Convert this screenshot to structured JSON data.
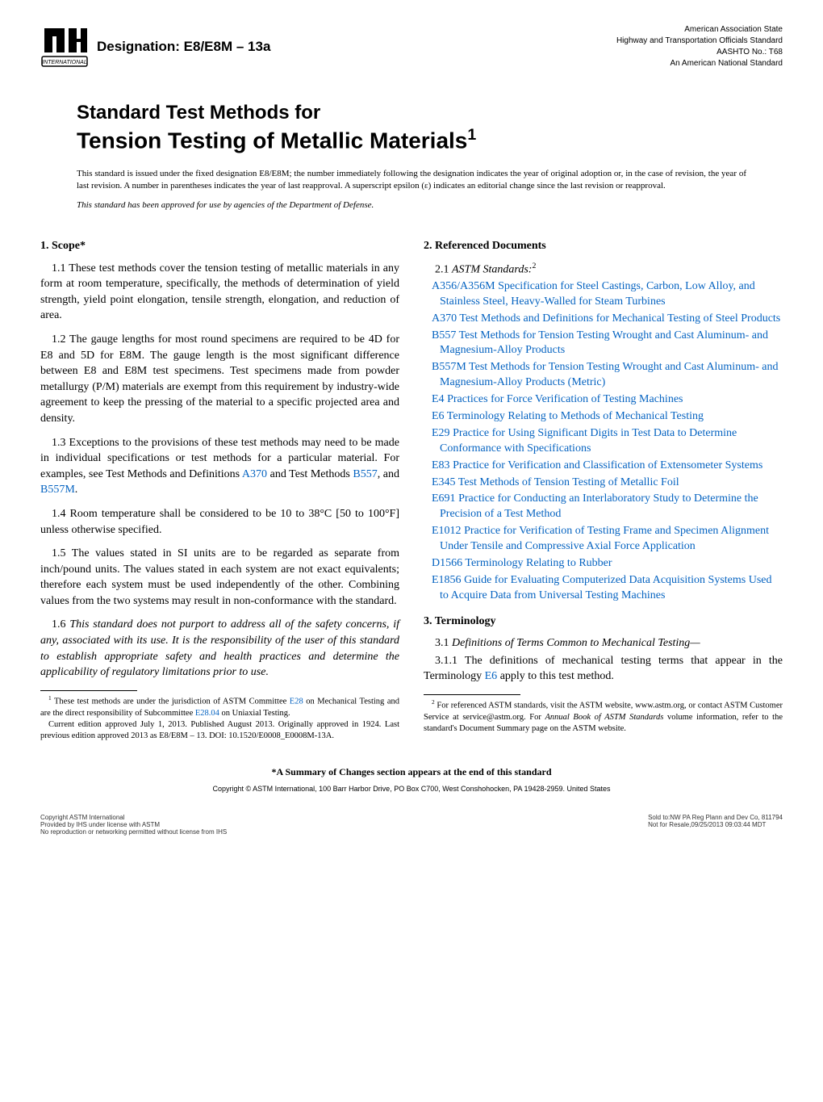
{
  "header": {
    "designation_label": "Designation: E8/E8M – 13a",
    "right_lines": [
      "American Association State",
      "Highway and Transportation Officials Standard",
      "AASHTO No.: T68",
      "An American National Standard"
    ]
  },
  "title": {
    "lead": "Standard Test Methods for",
    "main": "Tension Testing of Metallic Materials",
    "super": "1"
  },
  "preamble": {
    "text": "This standard is issued under the fixed designation E8/E8M; the number immediately following the designation indicates the year of original adoption or, in the case of revision, the year of last revision. A number in parentheses indicates the year of last reapproval. A superscript epsilon (ε) indicates an editorial change since the last revision or reapproval.",
    "italic": "This standard has been approved for use by agencies of the Department of Defense."
  },
  "sections": {
    "scope_head": "1.  Scope*",
    "scope_1_1": "1.1 These test methods cover the tension testing of metallic materials in any form at room temperature, specifically, the methods of determination of yield strength, yield point elongation, tensile strength, elongation, and reduction of area.",
    "scope_1_2": "1.2 The gauge lengths for most round specimens are required to be 4D for E8 and 5D for E8M. The gauge length is the most significant difference between E8 and E8M test specimens. Test specimens made from powder metallurgy (P/M) materials are exempt from this requirement by industry-wide agreement to keep the pressing of the material to a specific projected area and density.",
    "scope_1_3_a": "1.3 Exceptions to the provisions of these test methods may need to be made in individual specifications or test methods for a particular material. For examples, see Test Methods and Definitions ",
    "scope_1_3_l1": "A370",
    "scope_1_3_b": " and Test Methods ",
    "scope_1_3_l2": "B557",
    "scope_1_3_c": ", and ",
    "scope_1_3_l3": "B557M",
    "scope_1_3_d": ".",
    "scope_1_4": "1.4 Room temperature shall be considered to be 10 to 38°C [50 to 100°F] unless otherwise specified.",
    "scope_1_5": "1.5 The values stated in SI units are to be regarded as separate from inch/pound units. The values stated in each system are not exact equivalents; therefore each system must be used independently of the other. Combining values from the two systems may result in non-conformance with the standard.",
    "scope_1_6": "1.6 This standard does not purport to address all of the safety concerns, if any, associated with its use. It is the responsibility of the user of this standard to establish appropriate safety and health practices and determine the applicability of regulatory limitations prior to use.",
    "refdocs_head": "2.  Referenced Documents",
    "refdocs_2_1_a": "2.1 ",
    "refdocs_2_1_b": "ASTM Standards:",
    "refdocs_2_1_sup": "2",
    "refs": [
      {
        "code": "A356/A356M",
        "text": " Specification for Steel Castings, Carbon, Low Alloy, and Stainless Steel, Heavy-Walled for Steam Turbines"
      },
      {
        "code": "A370",
        "text": " Test Methods and Definitions for Mechanical Testing of Steel Products"
      },
      {
        "code": "B557",
        "text": " Test Methods for Tension Testing Wrought and Cast Aluminum- and Magnesium-Alloy Products"
      },
      {
        "code": "B557M",
        "text": " Test Methods for Tension Testing Wrought and Cast Aluminum- and Magnesium-Alloy Products (Metric)"
      },
      {
        "code": "E4",
        "text": " Practices for Force Verification of Testing Machines"
      },
      {
        "code": "E6",
        "text": " Terminology Relating to Methods of Mechanical Testing"
      },
      {
        "code": "E29",
        "text": " Practice for Using Significant Digits in Test Data to Determine Conformance with Specifications"
      },
      {
        "code": "E83",
        "text": " Practice for Verification and Classification of Extensometer Systems"
      },
      {
        "code": "E345",
        "text": " Test Methods of Tension Testing of Metallic Foil"
      },
      {
        "code": "E691",
        "text": " Practice for Conducting an Interlaboratory Study to Determine the Precision of a Test Method"
      },
      {
        "code": "E1012",
        "text": " Practice for Verification of Testing Frame and Specimen Alignment Under Tensile and Compressive Axial Force Application"
      },
      {
        "code": "D1566",
        "text": " Terminology Relating to Rubber"
      },
      {
        "code": "E1856",
        "text": " Guide for Evaluating Computerized Data Acquisition Systems Used to Acquire Data from Universal Testing Machines"
      }
    ],
    "term_head": "3.  Terminology",
    "term_3_1": "3.1 Definitions of Terms Common to Mechanical Testing—",
    "term_3_1_1_a": "3.1.1 The definitions of mechanical testing terms that appear in the Terminology ",
    "term_3_1_1_link": "E6",
    "term_3_1_1_b": " apply to this test method."
  },
  "footnotes": {
    "fn1_sup": "1",
    "fn1_a": " These test methods are under the jurisdiction of ASTM Committee ",
    "fn1_l1": "E28",
    "fn1_b": " on Mechanical Testing and are the direct responsibility of Subcommittee ",
    "fn1_l2": "E28.04",
    "fn1_c": " on Uniaxial Testing.",
    "fn1_d": "Current edition approved July 1, 2013. Published August 2013. Originally approved in 1924. Last previous edition approved 2013 as E8/E8M – 13. DOI: 10.1520/E0008_E0008M-13A.",
    "fn2_sup": "2",
    "fn2": " For referenced ASTM standards, visit the ASTM website, www.astm.org, or contact ASTM Customer Service at service@astm.org. For Annual Book of ASTM Standards volume information, refer to the standard's Document Summary page on the ASTM website."
  },
  "footer": {
    "changes": "*A Summary of Changes section appears at the end of this standard",
    "copyright": "Copyright © ASTM International, 100 Barr Harbor Drive, PO Box C700, West Conshohocken, PA 19428-2959. United States",
    "bl1": "Copyright ASTM International",
    "bl2": "Provided by IHS under license with ASTM",
    "bl3": "No reproduction or networking permitted without license from IHS",
    "br1": "Sold to:NW PA Reg Plann and Dev Co, 811794",
    "br2": "Not for Resale,09/25/2013 09:03:44 MDT"
  },
  "colors": {
    "link": "#0563c1",
    "text": "#000000",
    "bg": "#ffffff"
  }
}
